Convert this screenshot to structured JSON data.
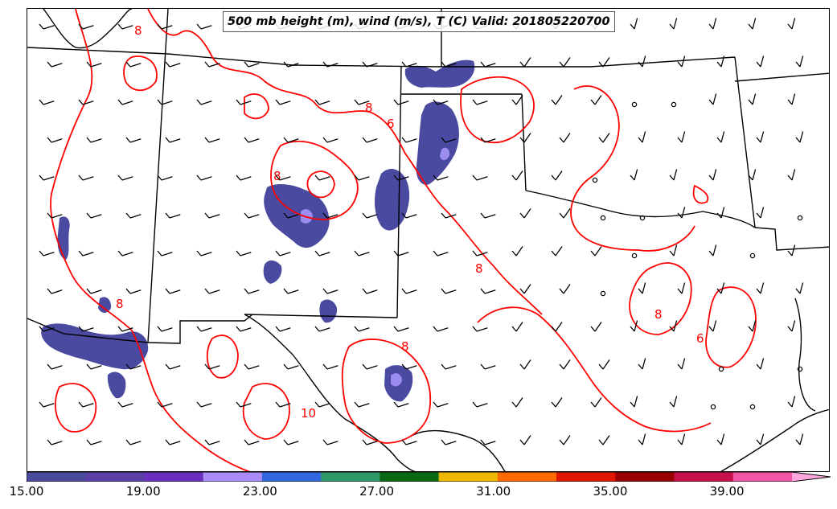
{
  "title": "500 mb height (m), wind (m/s), T (C) Valid: 201805220700",
  "colors": {
    "contour": "#ff0000",
    "boundary": "#000000",
    "barb": "#000000",
    "shade_main": "#4a4aa0",
    "shade_light": "#9b8cf0"
  },
  "contour_labels": [
    "8",
    "8",
    "6",
    "8",
    "8",
    "8",
    "8",
    "6",
    "10",
    "8"
  ],
  "colorbar": {
    "colors": [
      "#4b4b9b",
      "#5a3fa6",
      "#6a2fc0",
      "#a98cf5",
      "#3468e0",
      "#2e9a6a",
      "#0a6a14",
      "#efb800",
      "#ff6a00",
      "#e01600",
      "#9a0000",
      "#c8104a",
      "#f055a8",
      "#ffa6dc"
    ],
    "tick_labels": [
      "15.00",
      "19.00",
      "23.00",
      "27.00",
      "31.00",
      "35.00",
      "39.00"
    ],
    "tick_values": [
      15,
      19,
      23,
      27,
      31,
      35,
      39
    ],
    "range": [
      15,
      42
    ]
  }
}
